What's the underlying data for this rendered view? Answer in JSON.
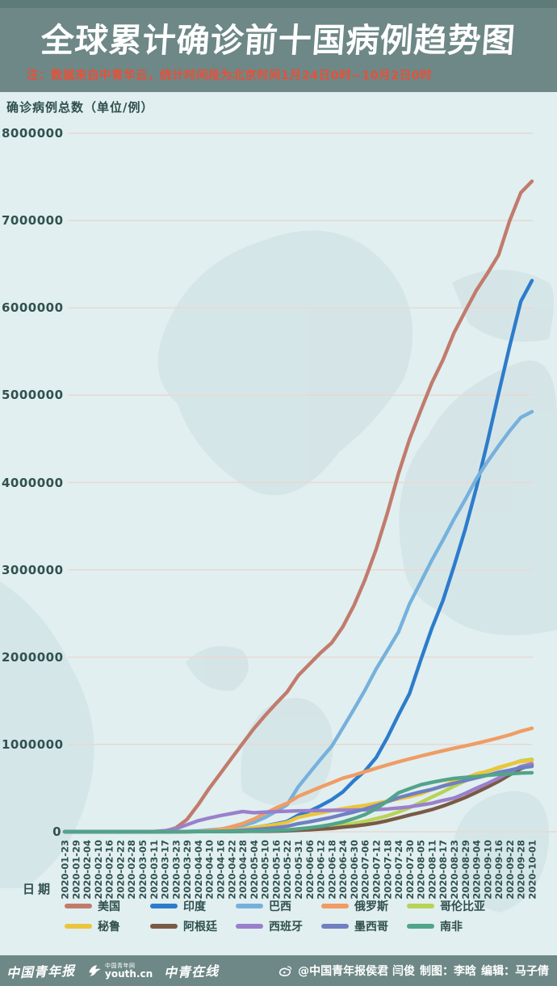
{
  "header": {
    "title": "全球累计确诊前十国病例趋势图",
    "note": "注：数据来自中青华云，统计时间段为北京时间1月24日0时~10月2日0时"
  },
  "colors": {
    "header_bg": "#6d8886",
    "note_red": "#ea4f38",
    "chart_bg": "#e1eff0",
    "grid_line": "#e9d8d1",
    "axis_text": "#30514f"
  },
  "footer": {
    "logo_paper": "中国青年报",
    "logo_net_name": "中国青年网",
    "logo_net_url": "youth.cn",
    "logo_online": "中青在线",
    "credit": "@中国青年报侯君 闫俊",
    "maker": "制图：李晗",
    "editor": "编辑：马子倩"
  },
  "chart_data": {
    "type": "line",
    "title": "全球累计确诊前十国病例趋势图",
    "xlabel": "日期",
    "ylabel": "确诊病例总数（单位/例）",
    "ylim": [
      0,
      8000000
    ],
    "yticks": [
      0,
      1000000,
      2000000,
      3000000,
      4000000,
      5000000,
      6000000,
      7000000,
      8000000
    ],
    "grid": true,
    "legend_position": "bottom",
    "x": [
      "2020-01-23",
      "2020-01-29",
      "2020-02-04",
      "2020-02-10",
      "2020-02-16",
      "2020-02-22",
      "2020-02-28",
      "2020-03-05",
      "2020-03-11",
      "2020-03-17",
      "2020-03-23",
      "2020-03-29",
      "2020-04-04",
      "2020-04-10",
      "2020-04-16",
      "2020-04-22",
      "2020-04-28",
      "2020-05-04",
      "2020-05-10",
      "2020-05-16",
      "2020-05-22",
      "2020-05-31",
      "2020-06-06",
      "2020-06-12",
      "2020-06-18",
      "2020-06-24",
      "2020-06-30",
      "2020-07-06",
      "2020-07-12",
      "2020-07-18",
      "2020-07-24",
      "2020-07-30",
      "2020-08-05",
      "2020-08-11",
      "2020-08-17",
      "2020-08-23",
      "2020-08-29",
      "2020-09-04",
      "2020-09-10",
      "2020-09-16",
      "2020-09-22",
      "2020-09-28",
      "2020-10-01"
    ],
    "series": [
      {
        "id": "us",
        "name": "美国",
        "color": "#c17b6c",
        "values": [
          1,
          5,
          11,
          12,
          15,
          35,
          60,
          220,
          1300,
          6400,
          44000,
          141000,
          309000,
          497000,
          668000,
          840000,
          1011000,
          1180000,
          1329000,
          1468000,
          1601000,
          1790000,
          1920000,
          2049000,
          2163000,
          2347000,
          2591000,
          2889000,
          3236000,
          3648000,
          4101000,
          4495000,
          4824000,
          5141000,
          5403000,
          5716000,
          5961000,
          6200000,
          6396000,
          6606000,
          7000000,
          7320000,
          7450000
        ]
      },
      {
        "id": "india",
        "name": "印度",
        "color": "#2d7ccc",
        "values": [
          0,
          0,
          1,
          3,
          3,
          3,
          3,
          30,
          62,
          142,
          499,
          1024,
          3082,
          7600,
          13430,
          21370,
          31324,
          46437,
          67161,
          90648,
          118226,
          190609,
          236184,
          297535,
          366946,
          456183,
          585481,
          697413,
          849522,
          1077781,
          1337022,
          1583792,
          1964536,
          2329638,
          2647663,
          3044940,
          3463972,
          3936747,
          4465863,
          5020359,
          5562663,
          6074702,
          6312584
        ]
      },
      {
        "id": "brazil",
        "name": "巴西",
        "color": "#76b1dc",
        "values": [
          0,
          0,
          0,
          0,
          0,
          0,
          1,
          4,
          34,
          291,
          1924,
          4256,
          10278,
          19638,
          30425,
          45757,
          71886,
          107780,
          162699,
          233142,
          310087,
          514849,
          672846,
          828810,
          978142,
          1188631,
          1402041,
          1623284,
          1864681,
          2074860,
          2287475,
          2610102,
          2859073,
          3109630,
          3340197,
          3582362,
          3804803,
          4041638,
          4238446,
          4419083,
          4591364,
          4745464,
          4810935
        ]
      },
      {
        "id": "russia",
        "name": "俄罗斯",
        "color": "#f09c64",
        "values": [
          0,
          0,
          2,
          2,
          2,
          2,
          2,
          4,
          20,
          114,
          438,
          1534,
          4731,
          11917,
          27938,
          57999,
          93558,
          145268,
          209688,
          272043,
          326448,
          405843,
          458689,
          511423,
          561091,
          613994,
          647849,
          687862,
          727162,
          765437,
          800849,
          834499,
          866627,
          897599,
          927745,
          956749,
          982573,
          1011987,
          1042836,
          1075485,
          1109595,
          1151438,
          1185231
        ]
      },
      {
        "id": "colombia",
        "name": "哥伦比亚",
        "color": "#b8d355",
        "values": [
          0,
          0,
          0,
          0,
          0,
          0,
          0,
          0,
          1,
          65,
          277,
          702,
          1406,
          2473,
          3105,
          4356,
          5597,
          7973,
          11063,
          14216,
          18330,
          29384,
          38027,
          46858,
          60217,
          77313,
          97846,
          120281,
          150445,
          182140,
          226373,
          276055,
          334979,
          397623,
          456689,
          522138,
          582022,
          650055,
          694664,
          728590,
          770435,
          813056,
          829679
        ]
      },
      {
        "id": "peru",
        "name": "秘鲁",
        "color": "#ecc53c",
        "values": [
          0,
          0,
          0,
          0,
          0,
          0,
          0,
          0,
          11,
          86,
          395,
          852,
          1746,
          5897,
          12491,
          19250,
          31190,
          45928,
          65015,
          84495,
          108769,
          164476,
          191758,
          214788,
          240908,
          264689,
          285213,
          302718,
          326247,
          349500,
          375961,
          400683,
          433100,
          483133,
          525803,
          576067,
          613378,
          663437,
          691575,
          738020,
          772896,
          805302,
          814829
        ]
      },
      {
        "id": "argentina",
        "name": "阿根廷",
        "color": "#7a5a45",
        "values": [
          0,
          0,
          0,
          0,
          0,
          0,
          0,
          1,
          19,
          65,
          266,
          745,
          1451,
          1975,
          2571,
          3144,
          4127,
          4887,
          5776,
          7479,
          10649,
          16851,
          22794,
          30295,
          37510,
          52457,
          64530,
          80447,
          100166,
          126755,
          158334,
          191302,
          221216,
          253868,
          294569,
          342154,
          392009,
          451198,
          512293,
          577338,
          652174,
          723132,
          765002
        ]
      },
      {
        "id": "spain",
        "name": "西班牙",
        "color": "#9a80cb",
        "values": [
          0,
          0,
          0,
          0,
          2,
          2,
          32,
          261,
          2277,
          11748,
          35136,
          80110,
          126168,
          157022,
          184948,
          208389,
          232128,
          218011,
          224350,
          230698,
          234824,
          239429,
          241310,
          243209,
          245268,
          247086,
          249271,
          252130,
          254056,
          260255,
          272421,
          285430,
          305767,
          326612,
          359082,
          386054,
          439286,
          498989,
          554143,
          614360,
          682267,
          748266,
          778607
        ]
      },
      {
        "id": "mexico",
        "name": "墨西哥",
        "color": "#6f80c2",
        "values": [
          0,
          0,
          0,
          0,
          0,
          0,
          0,
          1,
          8,
          82,
          367,
          848,
          1890,
          3844,
          6297,
          10544,
          16752,
          24905,
          35022,
          47144,
          62527,
          93435,
          113619,
          139196,
          165455,
          196847,
          226089,
          261750,
          299750,
          344224,
          390516,
          424637,
          456100,
          485836,
          522162,
          556216,
          585738,
          616894,
          647507,
          680931,
          705263,
          733717,
          748315
        ]
      },
      {
        "id": "south-africa",
        "name": "南非",
        "color": "#52a489",
        "values": [
          0,
          0,
          0,
          0,
          0,
          0,
          0,
          0,
          13,
          85,
          402,
          1280,
          1585,
          2003,
          2506,
          3465,
          4996,
          7220,
          10015,
          14355,
          20125,
          32683,
          45973,
          61927,
          83890,
          111796,
          151209,
          196750,
          264184,
          350879,
          445433,
          493183,
          538184,
          566109,
          589886,
          611450,
          622551,
          633015,
          646398,
          655572,
          663282,
          672572,
          676084
        ]
      }
    ]
  }
}
